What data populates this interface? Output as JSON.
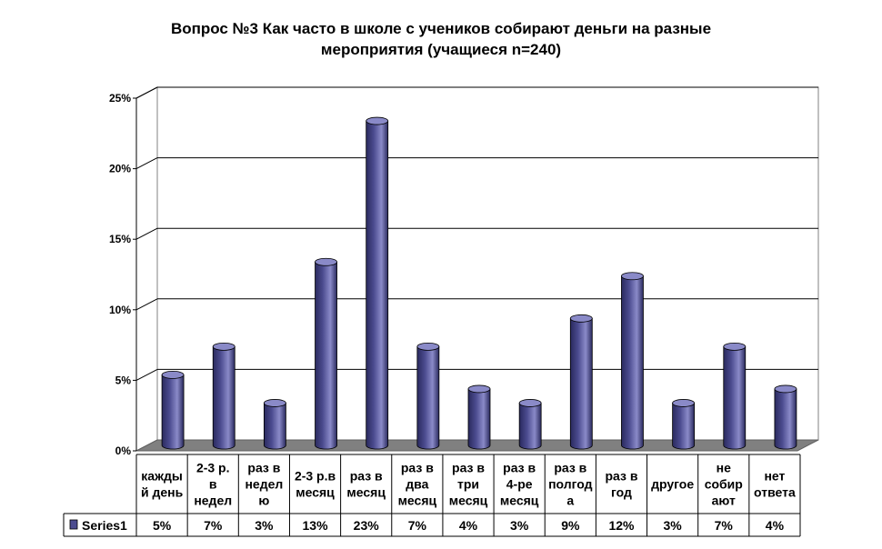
{
  "chart_data": {
    "type": "bar",
    "title": "Вопрос №3 Как часто в школе с учеников собирают деньги на разные\nмероприятия (учащиеся n=240)",
    "categories": [
      [
        "кажды",
        "й день"
      ],
      [
        "2-3 р.",
        "в",
        "недел"
      ],
      [
        "раз в",
        "недел",
        "ю"
      ],
      [
        "2-3 р.в",
        "месяц"
      ],
      [
        "раз в",
        "месяц"
      ],
      [
        "раз в",
        "два",
        "месяц"
      ],
      [
        "раз в",
        "три",
        "месяц"
      ],
      [
        "раз в",
        "4-ре",
        "месяц"
      ],
      [
        "раз в",
        "полгод",
        "а"
      ],
      [
        "раз в",
        "год"
      ],
      [
        "другое"
      ],
      [
        "не",
        "собир",
        "ают"
      ],
      [
        "нет",
        "ответа"
      ]
    ],
    "series": [
      {
        "name": "Series1",
        "values": [
          5,
          7,
          3,
          13,
          23,
          7,
          4,
          3,
          9,
          12,
          3,
          7,
          4
        ],
        "value_labels": [
          "5%",
          "7%",
          "3%",
          "13%",
          "23%",
          "7%",
          "4%",
          "3%",
          "9%",
          "12%",
          "3%",
          "7%",
          "4%"
        ]
      }
    ],
    "y_ticks": [
      "0%",
      "5%",
      "10%",
      "15%",
      "20%",
      "25%"
    ],
    "ylim": [
      0,
      25
    ],
    "grid": true,
    "legend": "in data table, left of values",
    "colors": {
      "bar": "#4b4b8f",
      "bar_light": "#8a8ac8",
      "bar_dark": "#2a2a5e",
      "floor": "#808080",
      "grid": "#000000"
    }
  }
}
